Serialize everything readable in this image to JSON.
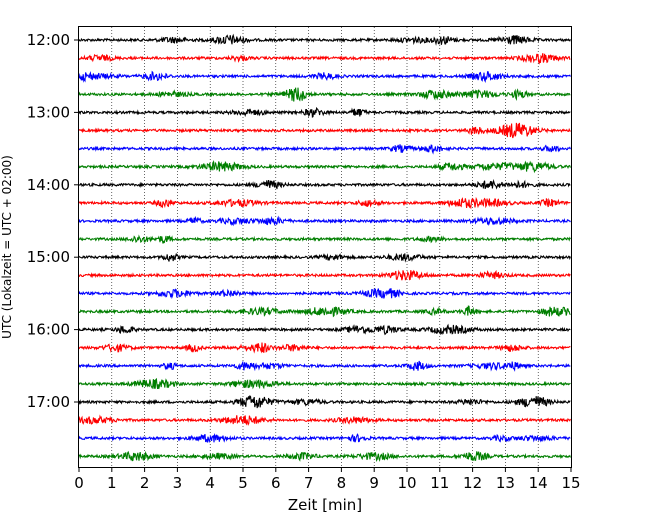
{
  "chart_data": {
    "type": "line",
    "title": "",
    "xlabel": "Zeit  [min]",
    "ylabel": "UTC (Lokalzeit = UTC + 02:00)",
    "xlim": [
      0,
      15
    ],
    "x_ticks": [
      "0",
      "1",
      "2",
      "3",
      "4",
      "5",
      "6",
      "7",
      "8",
      "9",
      "10",
      "11",
      "12",
      "13",
      "14",
      "15"
    ],
    "y_ticks": [
      "12:00",
      "13:00",
      "14:00",
      "15:00",
      "16:00",
      "17:00"
    ],
    "grid": "vertical-dotted",
    "trace_interval_min": 15,
    "trace_count": 24,
    "trace_colors": [
      "#000000",
      "#ff0000",
      "#0000ff",
      "#007f00"
    ],
    "traces": [
      {
        "start": "12:00",
        "color": "#000000"
      },
      {
        "start": "12:15",
        "color": "#ff0000"
      },
      {
        "start": "12:30",
        "color": "#0000ff"
      },
      {
        "start": "12:45",
        "color": "#007f00"
      },
      {
        "start": "13:00",
        "color": "#000000"
      },
      {
        "start": "13:15",
        "color": "#ff0000"
      },
      {
        "start": "13:30",
        "color": "#0000ff"
      },
      {
        "start": "13:45",
        "color": "#007f00"
      },
      {
        "start": "14:00",
        "color": "#000000"
      },
      {
        "start": "14:15",
        "color": "#ff0000"
      },
      {
        "start": "14:30",
        "color": "#0000ff"
      },
      {
        "start": "14:45",
        "color": "#007f00"
      },
      {
        "start": "15:00",
        "color": "#000000"
      },
      {
        "start": "15:15",
        "color": "#ff0000"
      },
      {
        "start": "15:30",
        "color": "#0000ff"
      },
      {
        "start": "15:45",
        "color": "#007f00"
      },
      {
        "start": "16:00",
        "color": "#000000"
      },
      {
        "start": "16:15",
        "color": "#ff0000"
      },
      {
        "start": "16:30",
        "color": "#0000ff"
      },
      {
        "start": "16:45",
        "color": "#007f00"
      },
      {
        "start": "17:00",
        "color": "#000000"
      },
      {
        "start": "17:15",
        "color": "#ff0000"
      },
      {
        "start": "17:30",
        "color": "#0000ff"
      },
      {
        "start": "17:45",
        "color": "#007f00"
      }
    ]
  }
}
